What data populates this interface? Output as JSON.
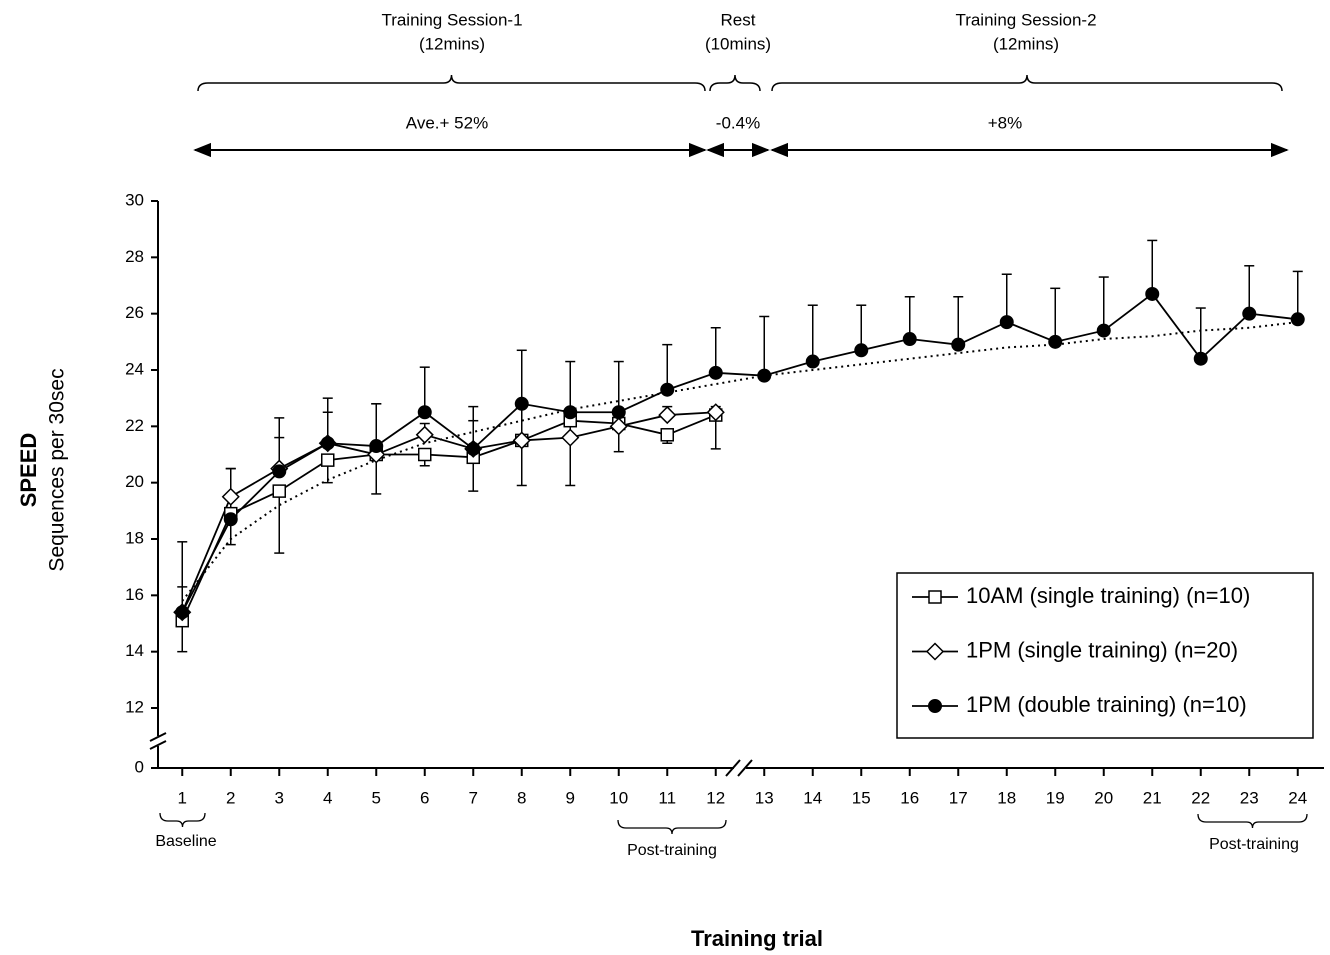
{
  "chart_data": {
    "type": "line",
    "x_title": "Training trial",
    "y_title": "SPEED",
    "y_subtitle": "Sequences per 30sec",
    "x": [
      1,
      2,
      3,
      4,
      5,
      6,
      7,
      8,
      9,
      10,
      11,
      12,
      13,
      14,
      15,
      16,
      17,
      18,
      19,
      20,
      21,
      22,
      23,
      24
    ],
    "xlim": [
      0.5,
      24.5
    ],
    "xticks": [
      1,
      2,
      3,
      4,
      5,
      6,
      7,
      8,
      9,
      10,
      11,
      12,
      13,
      14,
      15,
      16,
      17,
      18,
      19,
      20,
      21,
      22,
      23,
      24
    ],
    "x_axis_break": true,
    "ylim": [
      0,
      30
    ],
    "yticks": [
      0,
      12,
      14,
      16,
      18,
      20,
      22,
      24,
      26,
      28,
      30
    ],
    "y_axis_break": [
      0,
      12
    ],
    "series": [
      {
        "name": "10AM (single training) (n=10)",
        "color": "#000000",
        "marker": "square",
        "error_direction": "down",
        "values": [
          15.1,
          18.9,
          19.7,
          20.8,
          21.0,
          21.0,
          20.9,
          21.5,
          22.2,
          22.1,
          21.7,
          22.4,
          null,
          null,
          null,
          null,
          null,
          null,
          null,
          null,
          null,
          null,
          null,
          null
        ],
        "errors": [
          1.1,
          1.1,
          2.2,
          0.8,
          1.4,
          0.4,
          1.2,
          1.6,
          2.3,
          1.0,
          0.3,
          1.2,
          null,
          null,
          null,
          null,
          null,
          null,
          null,
          null,
          null,
          null,
          null,
          null
        ]
      },
      {
        "name": "1PM (single training)  (n=20)",
        "color": "#000000",
        "marker": "diamond",
        "error_direction": "up",
        "values": [
          15.4,
          19.5,
          20.5,
          21.4,
          21.0,
          21.7,
          21.2,
          21.5,
          21.6,
          22.0,
          22.4,
          22.5,
          null,
          null,
          null,
          null,
          null,
          null,
          null,
          null,
          null,
          null,
          null,
          null
        ],
        "errors": [
          0.9,
          1.0,
          1.1,
          1.1,
          1.8,
          0.4,
          1.0,
          1.3,
          0.7,
          0.4,
          0.3,
          0.2,
          null,
          null,
          null,
          null,
          null,
          null,
          null,
          null,
          null,
          null,
          null,
          null
        ]
      },
      {
        "name": "1PM (double training) (n=10)",
        "color": "#000000",
        "marker": "filled-circle",
        "error_direction": "up",
        "values": [
          15.4,
          18.7,
          20.4,
          21.4,
          21.3,
          22.5,
          21.2,
          22.8,
          22.5,
          22.5,
          23.3,
          23.9,
          23.8,
          24.3,
          24.7,
          25.1,
          24.9,
          25.7,
          25.0,
          25.4,
          26.7,
          24.4,
          26.0,
          25.8
        ],
        "errors": [
          2.5,
          1.8,
          1.9,
          1.6,
          1.5,
          1.6,
          1.5,
          1.9,
          1.8,
          1.8,
          1.6,
          1.6,
          2.1,
          2.0,
          1.6,
          1.5,
          1.7,
          1.7,
          1.9,
          1.9,
          1.9,
          1.8,
          1.7,
          1.7
        ]
      }
    ],
    "trendline": {
      "style": "dotted",
      "color": "#000000",
      "values": [
        15.8,
        18.0,
        19.2,
        20.1,
        20.8,
        21.4,
        21.8,
        22.2,
        22.6,
        22.9,
        23.2,
        23.5,
        23.8,
        24.0,
        24.2,
        24.4,
        24.6,
        24.8,
        24.9,
        25.1,
        25.2,
        25.4,
        25.5,
        25.7
      ]
    },
    "legend": "lower right",
    "periods": [
      {
        "label": [
          "Training Session-1",
          "(12mins)"
        ],
        "change": "Ave.+ 52%"
      },
      {
        "label": [
          "Rest",
          "(10mins)"
        ],
        "change": "-0.4%"
      },
      {
        "label": [
          "Training Session-2",
          "(12mins)"
        ],
        "change": "+8%"
      }
    ],
    "x_brackets": [
      "Baseline",
      "Post-training",
      "Post-training"
    ]
  }
}
